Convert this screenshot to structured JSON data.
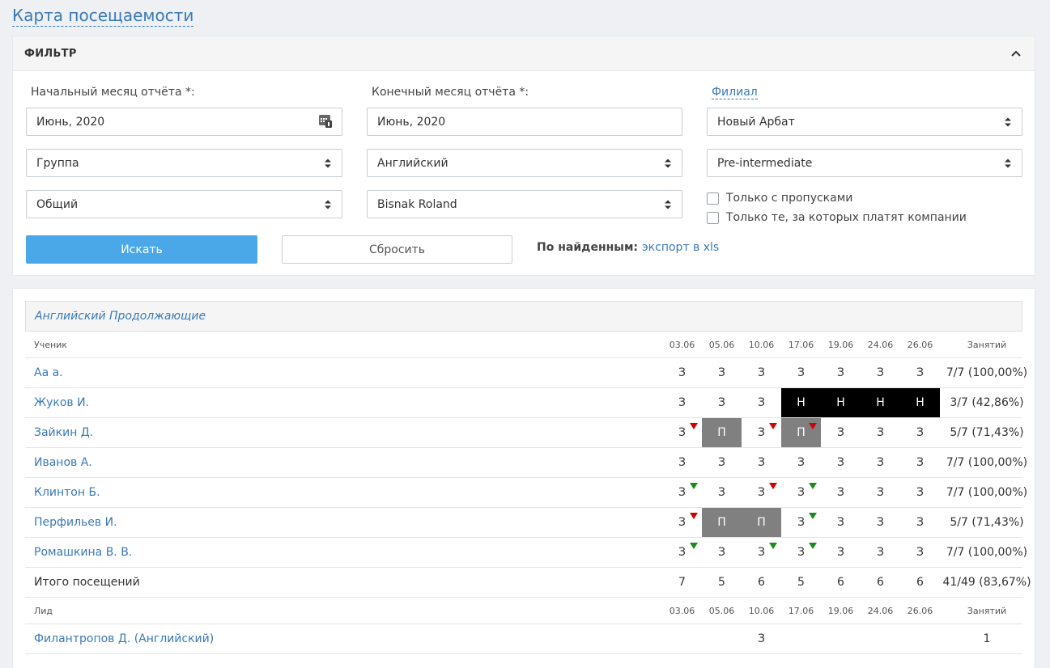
{
  "page": {
    "title": "Карта посещаемости"
  },
  "filter": {
    "title": "ФИЛЬТР",
    "start_label": "Начальный месяц отчёта *:",
    "start_value": "Июнь, 2020",
    "end_label": "Конечный месяц отчёта *:",
    "end_value": "Июнь, 2020",
    "branch_label": "Филиал",
    "branch_value": "Новый Арбат",
    "group_value": "Группа",
    "language_value": "Английский",
    "level_value": "Pre-intermediate",
    "type_value": "Общий",
    "teacher_value": "Bisnak Roland",
    "only_absences": "Только с пропусками",
    "only_company": "Только те, за которых платят компании",
    "search_btn": "Искать",
    "reset_btn": "Сбросить",
    "found_label": "По найденным:",
    "export_link": "экспорт в xls"
  },
  "attendance": {
    "group_name": "Английский Продолжающие",
    "header": {
      "student_col": "Ученик",
      "dates": [
        "03.06",
        "05.06",
        "10.06",
        "17.06",
        "19.06",
        "24.06",
        "26.06"
      ],
      "total_col": "Занятий"
    },
    "rows": [
      {
        "name": "Аа а.",
        "marks": [
          "З",
          "З",
          "З",
          "З",
          "З",
          "З",
          "З"
        ],
        "status": [
          "",
          "",
          "",
          "",
          "",
          "",
          ""
        ],
        "flags": [
          "",
          "",
          "",
          "",
          "",
          "",
          ""
        ],
        "total": "7/7 (100,00%)"
      },
      {
        "name": "Жуков И.",
        "marks": [
          "З",
          "З",
          "З",
          "Н",
          "Н",
          "Н",
          "Н"
        ],
        "status": [
          "",
          "",
          "",
          "absent",
          "absent",
          "absent",
          "absent"
        ],
        "flags": [
          "",
          "",
          "",
          "",
          "",
          "",
          ""
        ],
        "total": "3/7 (42,86%)"
      },
      {
        "name": "Зайкин Д.",
        "marks": [
          "З",
          "П",
          "З",
          "П",
          "З",
          "З",
          "З"
        ],
        "status": [
          "",
          "excused",
          "",
          "excused",
          "",
          "",
          ""
        ],
        "flags": [
          "red",
          "",
          "red",
          "red",
          "",
          "",
          ""
        ],
        "total": "5/7 (71,43%)"
      },
      {
        "name": "Иванов А.",
        "marks": [
          "З",
          "З",
          "З",
          "З",
          "З",
          "З",
          "З"
        ],
        "status": [
          "",
          "",
          "",
          "",
          "",
          "",
          ""
        ],
        "flags": [
          "",
          "",
          "",
          "",
          "",
          "",
          ""
        ],
        "total": "7/7 (100,00%)"
      },
      {
        "name": "Клинтон Б.",
        "marks": [
          "З",
          "З",
          "З",
          "З",
          "З",
          "З",
          "З"
        ],
        "status": [
          "",
          "",
          "",
          "",
          "",
          "",
          ""
        ],
        "flags": [
          "green",
          "",
          "red",
          "green",
          "",
          "",
          ""
        ],
        "total": "7/7 (100,00%)"
      },
      {
        "name": "Перфильев И.",
        "marks": [
          "З",
          "П",
          "П",
          "З",
          "З",
          "З",
          "З"
        ],
        "status": [
          "",
          "excused",
          "excused",
          "",
          "",
          "",
          ""
        ],
        "flags": [
          "red",
          "",
          "",
          "green",
          "",
          "",
          ""
        ],
        "total": "5/7 (71,43%)"
      },
      {
        "name": "Ромашкина В. В.",
        "marks": [
          "З",
          "З",
          "З",
          "З",
          "З",
          "З",
          "З"
        ],
        "status": [
          "",
          "",
          "",
          "",
          "",
          "",
          ""
        ],
        "flags": [
          "green",
          "",
          "green",
          "green",
          "",
          "",
          ""
        ],
        "total": "7/7 (100,00%)"
      }
    ],
    "totals_row": {
      "label": "Итого посещений",
      "values": [
        "7",
        "5",
        "6",
        "5",
        "6",
        "6",
        "6"
      ],
      "total": "41/49 (83,67%)"
    },
    "lead_header": {
      "col": "Лид",
      "dates": [
        "03.06",
        "05.06",
        "10.06",
        "17.06",
        "19.06",
        "24.06",
        "26.06"
      ],
      "total_col": "Занятий"
    },
    "lead_rows": [
      {
        "name": "Филантропов Д. (Английский)",
        "marks": [
          "",
          "",
          "З",
          "",
          "",
          "",
          ""
        ],
        "total": "1"
      }
    ]
  },
  "colors": {
    "link": "#3a79b5",
    "primary_button": "#4aa8e8",
    "absent_bg": "#000000",
    "excused_bg": "#808080",
    "flag_red": "#d40000",
    "flag_green": "#1a8a1a"
  }
}
